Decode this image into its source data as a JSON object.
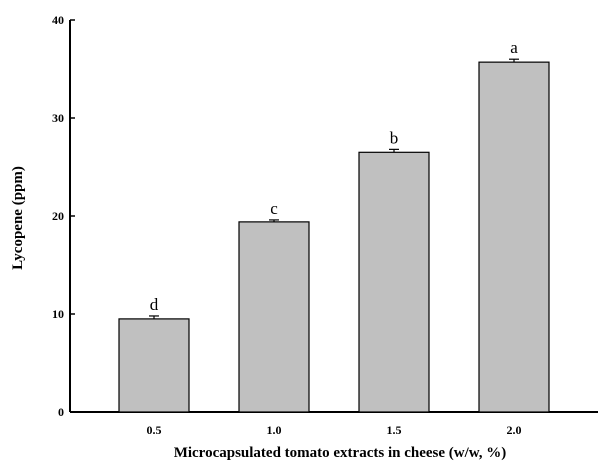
{
  "chart_data": {
    "type": "bar",
    "categories": [
      "0.5",
      "1.0",
      "1.5",
      "2.0"
    ],
    "values": [
      9.5,
      19.4,
      26.5,
      35.7
    ],
    "errors": [
      0.3,
      0.2,
      0.3,
      0.3
    ],
    "significance_letters": [
      "d",
      "c",
      "b",
      "a"
    ],
    "xlabel": "Microcapsulated tomato extracts in cheese (w/w, %)",
    "ylabel": "Lycopene (ppm)",
    "ylim": [
      0,
      40
    ],
    "yticks": [
      "0",
      "10",
      "20",
      "30",
      "40"
    ],
    "grid": false,
    "bar_color": "#c0c0c0",
    "edge_color": "#000000"
  }
}
